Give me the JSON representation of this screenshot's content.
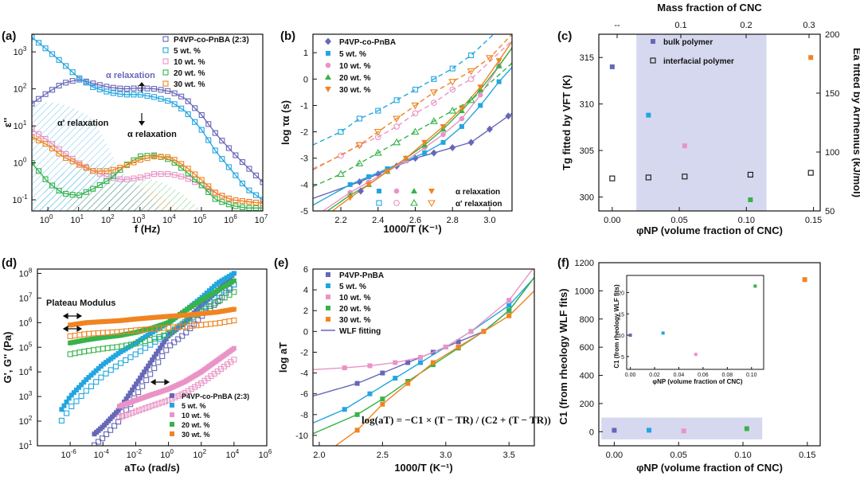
{
  "colors": {
    "c0": "#6767b8",
    "c1": "#22a6e0",
    "c2": "#ea93c6",
    "c3": "#36b34a",
    "c4": "#f08421",
    "shade": "#d6d8ef"
  },
  "chart_data": [
    {
      "id": "a",
      "panel_label": "(a)",
      "type": "line",
      "xlabel": "f (Hz)",
      "ylabel": "ε''",
      "xscale": "log",
      "yscale": "log",
      "xlim": [
        0.3,
        10000000
      ],
      "ylim": [
        0.05,
        3000
      ],
      "xticks": [
        "10^0",
        "10^1",
        "10^2",
        "10^3",
        "10^4",
        "10^5",
        "10^6",
        "10^7"
      ],
      "yticks": [
        "10^-1",
        "10^0",
        "10^1",
        "10^2",
        "10^3"
      ],
      "legend": [
        "P4VP-co-PnBA (2:3)",
        "5 wt. %",
        "10 wt. %",
        "20 wt. %",
        "30 wt. %"
      ],
      "annotations": [
        "α relaxation",
        "α' relaxation",
        "α relaxation"
      ],
      "series": [
        {
          "name": "P4VP-co-PnBA (2:3)",
          "x": [
            0.3,
            1,
            3,
            10,
            30,
            100,
            300,
            1000,
            3000,
            10000,
            30000,
            100000,
            300000,
            1000000,
            3000000,
            10000000
          ],
          "y": [
            40,
            80,
            140,
            180,
            140,
            110,
            100,
            105,
            100,
            85,
            55,
            20,
            6,
            2,
            0.8,
            0.3
          ]
        },
        {
          "name": "5 wt. %",
          "x": [
            0.3,
            1,
            3,
            10,
            30,
            100,
            300,
            1000,
            3000,
            10000,
            30000,
            100000,
            300000,
            1000000,
            3000000,
            10000000
          ],
          "y": [
            2500,
            1100,
            500,
            200,
            110,
            80,
            70,
            70,
            60,
            45,
            25,
            8,
            2,
            0.6,
            0.2,
            0.1
          ]
        },
        {
          "name": "10 wt. %",
          "x": [
            0.3,
            1,
            3,
            10,
            30,
            100,
            300,
            1000,
            3000,
            10000,
            30000,
            100000,
            300000,
            1000000,
            3000000,
            10000000
          ],
          "y": [
            8,
            4,
            2,
            1,
            0.6,
            0.4,
            0.35,
            0.4,
            0.5,
            0.5,
            0.4,
            0.25,
            0.15,
            0.1,
            0.09,
            0.08
          ]
        },
        {
          "name": "20 wt. %",
          "x": [
            0.3,
            1,
            3,
            10,
            30,
            100,
            300,
            1000,
            3000,
            10000,
            30000,
            100000,
            300000,
            1000000,
            3000000,
            10000000
          ],
          "y": [
            1,
            0.3,
            0.15,
            0.13,
            0.2,
            0.35,
            0.8,
            1.5,
            1.6,
            1.2,
            0.6,
            0.25,
            0.1,
            0.07,
            0.06,
            0.06
          ]
        },
        {
          "name": "30 wt. %",
          "x": [
            0.3,
            1,
            3,
            10,
            30,
            100,
            300,
            1000,
            3000,
            10000,
            30000,
            100000,
            300000,
            1000000,
            3000000,
            10000000
          ],
          "y": [
            5,
            3,
            1.5,
            0.9,
            0.6,
            0.6,
            0.8,
            1.2,
            1.5,
            1.4,
            0.8,
            0.35,
            0.15,
            0.1,
            0.09,
            0.08
          ]
        }
      ]
    },
    {
      "id": "b",
      "panel_label": "(b)",
      "type": "scatter",
      "xlabel": "1000/T (K⁻¹)",
      "ylabel": "log τα (s)",
      "xlim": [
        2.05,
        3.12
      ],
      "ylim": [
        -5,
        1.7
      ],
      "xticks": [
        "2.2",
        "2.4",
        "2.6",
        "2.8",
        "3.0"
      ],
      "yticks": [
        "-5",
        "-4",
        "-3",
        "-2",
        "-1",
        "0",
        "1"
      ],
      "legend": [
        "P4VP-co-PnBA",
        "5 wt. %",
        "10 wt. %",
        "20 wt. %",
        "30 wt. %"
      ],
      "legend2": [
        "α relaxation",
        "α' relaxation"
      ],
      "series": [
        {
          "name": "P4VP-co-PnBA",
          "x": [
            2.3,
            2.4,
            2.5,
            2.6,
            2.7,
            2.8,
            2.9,
            3.0,
            3.1
          ],
          "y": [
            -3.9,
            -3.6,
            -3.3,
            -3.0,
            -2.8,
            -2.6,
            -2.4,
            -1.9,
            -1.4
          ]
        },
        {
          "name": "5 wt. %",
          "x": [
            2.25,
            2.35,
            2.45,
            2.55,
            2.65,
            2.75,
            2.85,
            2.95,
            3.05
          ],
          "y": [
            -4.0,
            -3.7,
            -3.4,
            -3.1,
            -2.8,
            -2.4,
            -1.8,
            -1.0,
            -0.1
          ]
        },
        {
          "name": "10 wt. %",
          "x": [
            2.25,
            2.35,
            2.45,
            2.55,
            2.65,
            2.75,
            2.85,
            2.95,
            3.05
          ],
          "y": [
            -4.3,
            -3.9,
            -3.5,
            -3.1,
            -2.6,
            -2.1,
            -1.5,
            -0.6,
            0.5
          ]
        },
        {
          "name": "20 wt. %",
          "x": [
            2.25,
            2.35,
            2.45,
            2.55,
            2.65,
            2.75,
            2.85,
            2.95,
            3.05
          ],
          "y": [
            -4.4,
            -4.0,
            -3.5,
            -3.0,
            -2.5,
            -1.9,
            -1.2,
            -0.4,
            0.5
          ]
        },
        {
          "name": "30 wt. %",
          "x": [
            2.25,
            2.35,
            2.45,
            2.55,
            2.65,
            2.75,
            2.85,
            2.95,
            3.05
          ],
          "y": [
            -4.5,
            -4.0,
            -3.5,
            -3.0,
            -2.4,
            -1.8,
            -1.1,
            -0.3,
            0.7
          ]
        },
        {
          "name": "5 wt. % (α')",
          "x": [
            2.2,
            2.3,
            2.4,
            2.5,
            2.6,
            2.7,
            2.8,
            2.9
          ],
          "y": [
            -2.0,
            -1.5,
            -1.2,
            -0.8,
            -0.4,
            0.0,
            0.4,
            0.9
          ]
        },
        {
          "name": "10 wt. % (α')",
          "x": [
            2.2,
            2.3,
            2.4,
            2.5,
            2.6,
            2.7,
            2.8,
            2.9
          ],
          "y": [
            -2.9,
            -2.5,
            -2.2,
            -1.8,
            -1.3,
            -0.9,
            -0.4,
            0.0
          ]
        },
        {
          "name": "20 wt. % (α')",
          "x": [
            2.2,
            2.3,
            2.4,
            2.5,
            2.6,
            2.7,
            2.8,
            2.9
          ],
          "y": [
            -3.6,
            -3.2,
            -2.8,
            -2.4,
            -2.0,
            -1.6,
            -1.2,
            -0.8
          ]
        },
        {
          "name": "30 wt. % (α')",
          "x": [
            2.3,
            2.4,
            2.5,
            2.6,
            2.7,
            2.8,
            2.9,
            3.0
          ],
          "y": [
            -2.5,
            -2.0,
            -1.5,
            -1.0,
            -0.5,
            -0.1,
            0.3,
            0.8
          ]
        }
      ]
    },
    {
      "id": "c",
      "panel_label": "(c)",
      "type": "scatter",
      "xlabel": "φNP (volume fraction of CNC)",
      "ylabel": "Tg fitted by VFT (K)",
      "ylabel2": "Ea fitted by Arrhenius (kJ/mol)",
      "top_label": "Mass fraction of CNC",
      "top_ticks": [
        "--",
        "0.1",
        "0.2",
        "0.3"
      ],
      "xlim": [
        -0.01,
        0.155
      ],
      "ylim": [
        298.5,
        317.5
      ],
      "y2lim": [
        50,
        200
      ],
      "xticks": [
        "0.00",
        "0.05",
        "0.10",
        "0.15"
      ],
      "yticks": [
        "300",
        "305",
        "310",
        "315"
      ],
      "y2ticks": [
        "50",
        "100",
        "150",
        "200"
      ],
      "legend": [
        "bulk polymer",
        "interfacial polymer"
      ],
      "shaded_region": [
        0.018,
        0.115
      ],
      "series": [
        {
          "name": "bulk polymer",
          "x": [
            0,
            0.027,
            0.054,
            0.103,
            0.148
          ],
          "y": [
            314,
            308.8,
            305.5,
            299.7,
            315
          ]
        },
        {
          "name": "interfacial polymer",
          "x": [
            0,
            0.027,
            0.054,
            0.103,
            0.148
          ],
          "y": [
            302,
            302.1,
            302.2,
            302.4,
            302.6
          ]
        }
      ]
    },
    {
      "id": "d",
      "panel_label": "(d)",
      "type": "scatter",
      "xlabel": "aTω (rad/s)",
      "ylabel": "G', G'' (Pa)",
      "xscale": "log",
      "yscale": "log",
      "xlim": [
        1e-08,
        1000000
      ],
      "ylim": [
        10,
        150000000
      ],
      "xticks": [
        "10^-6",
        "10^-4",
        "10^-2",
        "10^0",
        "10^2",
        "10^4",
        "10^6"
      ],
      "yticks": [
        "10^1",
        "10^2",
        "10^3",
        "10^4",
        "10^5",
        "10^6",
        "10^7",
        "10^8"
      ],
      "legend": [
        "P4VP-co-PnBA (2:3)",
        "5 wt. %",
        "10 wt. %",
        "20 wt. %",
        "30 wt. %"
      ],
      "annotations": [
        "Plateau Modulus"
      ],
      "series": [
        {
          "name": "P4VP-co-PnBA (2:3)",
          "x": [
            3e-05,
            0.0001,
            0.001,
            0.01,
            0.1,
            1,
            10,
            100,
            1000,
            10000
          ],
          "y": [
            30,
            60,
            300,
            3000,
            30000,
            300000,
            1000000,
            5000000,
            20000000,
            100000000
          ]
        },
        {
          "name": "5 wt. %",
          "x": [
            3e-07,
            1e-06,
            1e-05,
            0.0001,
            0.001,
            0.01,
            0.1,
            1,
            10,
            100,
            1000,
            10000
          ],
          "y": [
            300,
            1000,
            5000,
            20000,
            60000,
            150000,
            400000,
            1000000,
            3000000,
            10000000,
            40000000,
            100000000
          ]
        },
        {
          "name": "10 wt. %",
          "x": [
            0.001,
            0.01,
            0.1,
            1,
            10,
            100,
            1000,
            10000
          ],
          "y": [
            400,
            700,
            1200,
            2000,
            4000,
            10000,
            30000,
            90000
          ]
        },
        {
          "name": "20 wt. %",
          "x": [
            1e-06,
            1e-05,
            0.0001,
            0.001,
            0.01,
            0.1,
            1,
            10,
            100,
            1000,
            10000
          ],
          "y": [
            150000,
            200000,
            250000,
            300000,
            400000,
            600000,
            1000000,
            3000000,
            8000000,
            20000000,
            50000000
          ]
        },
        {
          "name": "30 wt. %",
          "x": [
            1e-06,
            1e-05,
            0.0001,
            0.001,
            0.01,
            0.1,
            1,
            10,
            100,
            1000,
            10000
          ],
          "y": [
            800000,
            1000000,
            1100000,
            1200000,
            1400000,
            1600000,
            1800000,
            2000000,
            2300000,
            2700000,
            3500000
          ]
        }
      ]
    },
    {
      "id": "e",
      "panel_label": "(e)",
      "type": "scatter",
      "xlabel": "1000/T (K⁻¹)",
      "ylabel": "log aT",
      "xlim": [
        1.95,
        3.7
      ],
      "ylim": [
        -11,
        6
      ],
      "xticks": [
        "2.0",
        "2.5",
        "3.0",
        "3.5"
      ],
      "yticks": [
        "-10",
        "-8",
        "-6",
        "-4",
        "-2",
        "0",
        "2",
        "4",
        "6"
      ],
      "legend": [
        "P4VP-PnBA",
        "5 wt. %",
        "10 wt. %",
        "20 wt. %",
        "30 wt. %",
        "WLF fitting"
      ],
      "equation": "log(aT) = −C1 × (T − TR) / (C2 + (T − TR))",
      "series": [
        {
          "name": "P4VP-PnBA",
          "x": [
            2.3,
            2.5,
            2.7,
            2.9,
            3.1,
            3.3,
            3.5
          ],
          "y": [
            -5.0,
            -4.0,
            -3.0,
            -2.0,
            -1.0,
            0,
            2.0
          ]
        },
        {
          "name": "5 wt. %",
          "x": [
            2.2,
            2.4,
            2.6,
            2.8,
            3.0,
            3.2,
            3.5
          ],
          "y": [
            -7.5,
            -6.0,
            -4.5,
            -3.0,
            -1.5,
            0,
            2.5
          ]
        },
        {
          "name": "10 wt. %",
          "x": [
            2.2,
            2.4,
            2.6,
            2.8,
            3.0,
            3.2,
            3.5
          ],
          "y": [
            -3.5,
            -3.3,
            -3.0,
            -2.5,
            -1.5,
            0,
            3.0
          ]
        },
        {
          "name": "20 wt. %",
          "x": [
            2.3,
            2.5,
            2.7,
            2.9,
            3.1,
            3.3,
            3.5
          ],
          "y": [
            -8.0,
            -6.5,
            -4.8,
            -3.2,
            -1.6,
            0,
            2.0
          ]
        },
        {
          "name": "30 wt. %",
          "x": [
            2.3,
            2.5,
            2.7,
            2.9,
            3.1,
            3.3,
            3.5
          ],
          "y": [
            -9.5,
            -7.0,
            -5.0,
            -3.0,
            -1.5,
            0,
            1.5
          ]
        }
      ]
    },
    {
      "id": "f",
      "panel_label": "(f)",
      "type": "scatter",
      "xlabel": "φNP (volume fraction of CNC)",
      "ylabel": "C1 (from rheology WLF fits)",
      "xlim": [
        -0.012,
        0.16
      ],
      "ylim": [
        -100,
        1200
      ],
      "xticks": [
        "0.00",
        "0.05",
        "0.10",
        "0.15"
      ],
      "yticks": [
        "0",
        "200",
        "400",
        "600",
        "800",
        "1000",
        "1200"
      ],
      "shaded_region": [
        -0.01,
        0.115
      ],
      "series": [
        {
          "name": "C1",
          "x": [
            0,
            0.027,
            0.054,
            0.103,
            0.148
          ],
          "y": [
            10,
            10.5,
            5.5,
            21.5,
            1080
          ]
        }
      ],
      "inset": {
        "xlabel": "φNP (volume fraction of CNC)",
        "ylabel": "C1 (from rheology WLF fits)",
        "xlim": [
          -0.003,
          0.11
        ],
        "ylim": [
          2,
          24
        ],
        "xticks": [
          "0.00",
          "0.02",
          "0.04",
          "0.06",
          "0.08",
          "0.10"
        ],
        "yticks": [
          "5",
          "10",
          "15",
          "20"
        ],
        "series": [
          {
            "name": "C1",
            "x": [
              0,
              0.027,
              0.054,
              0.103
            ],
            "y": [
              10,
              10.5,
              5.5,
              21.5
            ]
          }
        ]
      }
    }
  ]
}
